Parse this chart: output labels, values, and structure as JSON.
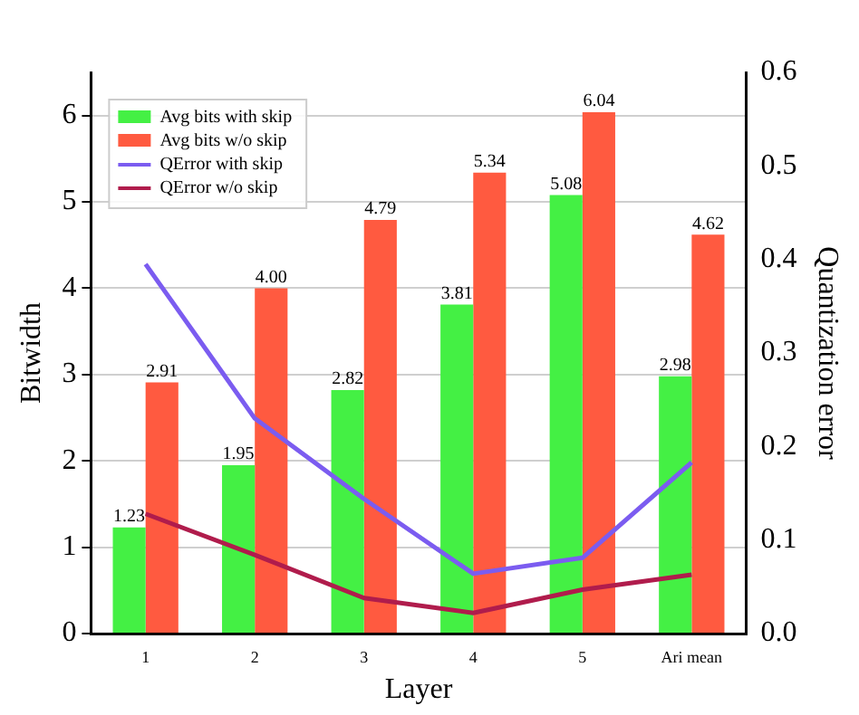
{
  "chart_data": {
    "type": "bar",
    "xlabel": "Layer",
    "ylabel": "Bitwidth",
    "y2label": "Quantization error",
    "categories": [
      "1",
      "2",
      "3",
      "4",
      "5",
      "Ari mean"
    ],
    "series": [
      {
        "name": "Avg bits with skip",
        "color": "#44f044",
        "values": [
          1.23,
          1.95,
          2.82,
          3.81,
          5.08,
          2.98
        ],
        "value_labels": [
          "1.23",
          "1.95",
          "2.82",
          "3.81",
          "5.08",
          "2.98"
        ]
      },
      {
        "name": "Avg bits w/o skip",
        "color": "#ff5a40",
        "values": [
          2.91,
          4.0,
          4.79,
          5.34,
          6.04,
          4.62
        ],
        "value_labels": [
          "2.91",
          "4.00",
          "4.79",
          "5.34",
          "6.04",
          "4.62"
        ]
      },
      {
        "name": "QError with skip",
        "type": "line",
        "axis": "y2",
        "color": "#7b5cf0",
        "values": [
          0.395,
          0.23,
          0.144,
          0.064,
          0.081,
          0.183
        ]
      },
      {
        "name": "QError w/o skip",
        "type": "line",
        "axis": "y2",
        "color": "#b01c4c",
        "values": [
          0.128,
          0.084,
          0.038,
          0.022,
          0.047,
          0.063
        ]
      }
    ],
    "ylim": [
      0,
      6.5
    ],
    "yticks": [
      0,
      1,
      2,
      3,
      4,
      5,
      6
    ],
    "y2lim": [
      0,
      0.6
    ],
    "y2ticks": [
      {
        "value": 0,
        "label": "0.0"
      },
      0.1,
      0.2,
      0.3,
      0.4,
      0.5,
      0.6
    ],
    "grid": "y",
    "legend": "top left",
    "marker": "none"
  }
}
